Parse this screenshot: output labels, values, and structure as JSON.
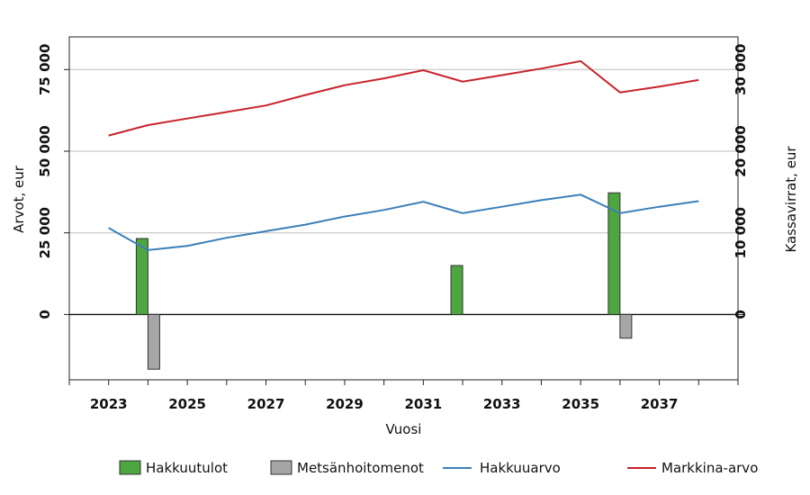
{
  "chart_data": {
    "type": "bar+line",
    "title": "",
    "xlabel": "Vuosi",
    "ylabel_left": "Arvot, eur",
    "ylabel_right": "Kassavirrat, eur",
    "x_ticks": [
      2023,
      2025,
      2027,
      2029,
      2031,
      2033,
      2035,
      2037
    ],
    "x_range": [
      2022,
      2039
    ],
    "left_axis": {
      "range": [
        -20000,
        85000
      ],
      "ticks": [
        0,
        25000,
        50000,
        75000
      ],
      "tick_labels": [
        "0",
        "25 000",
        "50 000",
        "75 000"
      ],
      "grid": true
    },
    "right_axis": {
      "range": [
        -8000,
        34000
      ],
      "ticks": [
        0,
        10000,
        20000,
        30000
      ],
      "tick_labels": [
        "0",
        "10 000",
        "20 000",
        "30 000"
      ]
    },
    "bar_series": [
      {
        "name": "Hakkuutulot",
        "color": "#4ea640",
        "axis": "right",
        "points": [
          {
            "x": 2024,
            "y": 9300
          },
          {
            "x": 2032,
            "y": 6000
          },
          {
            "x": 2036,
            "y": 14900
          }
        ]
      },
      {
        "name": "Metsänhoitomenot",
        "color": "#a6a6a6",
        "axis": "right",
        "points": [
          {
            "x": 2024,
            "y": -6700
          },
          {
            "x": 2036,
            "y": -2900
          }
        ]
      }
    ],
    "line_series": [
      {
        "name": "Hakkuuarvo",
        "color": "#3a7fb8",
        "axis": "left",
        "x": [
          2023,
          2024,
          2025,
          2026,
          2027,
          2028,
          2029,
          2030,
          2031,
          2032,
          2033,
          2034,
          2035,
          2036,
          2037,
          2038
        ],
        "y": [
          26500,
          19700,
          21000,
          23500,
          25500,
          27500,
          30000,
          32000,
          34500,
          31000,
          33000,
          35000,
          36700,
          31000,
          33000,
          34700
        ]
      },
      {
        "name": "Markkina-arvo",
        "color": "#c8232a",
        "axis": "left",
        "x": [
          2023,
          2024,
          2025,
          2026,
          2027,
          2028,
          2029,
          2030,
          2031,
          2032,
          2033,
          2034,
          2035,
          2036,
          2037,
          2038
        ],
        "y": [
          54800,
          58000,
          60000,
          62000,
          64000,
          67200,
          70200,
          72300,
          74800,
          71300,
          73300,
          75300,
          77600,
          68000,
          69800,
          71800
        ]
      }
    ],
    "legend": {
      "position": "bottom",
      "entries": [
        {
          "name": "Hakkuutulot",
          "kind": "bar",
          "color": "#4ea640"
        },
        {
          "name": "Metsänhoitomenot",
          "kind": "bar",
          "color": "#a6a6a6"
        },
        {
          "name": "Hakkuuarvo",
          "kind": "line",
          "color": "#3a7fb8"
        },
        {
          "name": "Markkina-arvo",
          "kind": "line",
          "color": "#c8232a"
        }
      ]
    }
  }
}
